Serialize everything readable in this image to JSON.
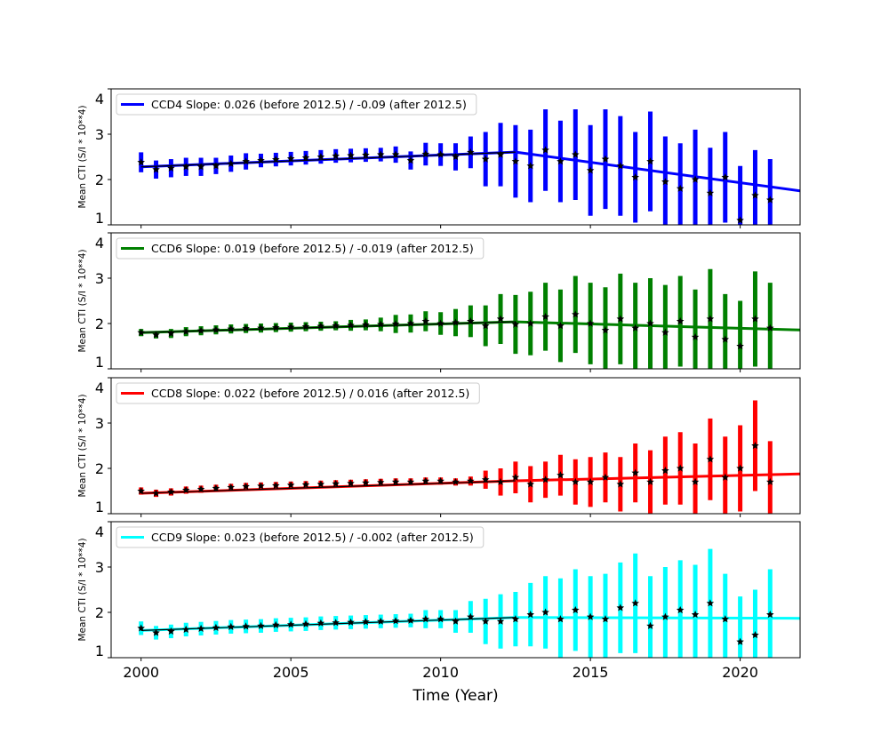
{
  "chart_data": {
    "type": "scatter",
    "xlabel": "Time (Year)",
    "ylabel": "Mean CTI (S/I * 10**4)",
    "xlim": [
      1999,
      2022
    ],
    "ylim": [
      1,
      4
    ],
    "xticks": [
      2000,
      2005,
      2010,
      2015,
      2020
    ],
    "yticks": [
      1,
      2,
      3,
      4
    ],
    "legend_placement": "top-left",
    "grid": false,
    "x": [
      2000,
      2000.5,
      2001,
      2001.5,
      2002,
      2002.5,
      2003,
      2003.5,
      2004,
      2004.5,
      2005,
      2005.5,
      2006,
      2006.5,
      2007,
      2007.5,
      2008,
      2008.5,
      2009,
      2009.5,
      2010,
      2010.5,
      2011,
      2011.5,
      2012,
      2012.5,
      2013,
      2013.5,
      2014,
      2014.5,
      2015,
      2015.5,
      2016,
      2016.5,
      2017,
      2017.5,
      2018,
      2018.5,
      2019,
      2019.5,
      2020,
      2020.5,
      2021
    ],
    "panels": [
      {
        "legend": "CCD4 Slope: 0.026 (before 2012.5) / -0.09 (after 2012.5)",
        "color": "#0000ff",
        "fit": {
          "start": 2000,
          "break": 2012.5,
          "end": 2022,
          "intercept": 2.28,
          "slope_before": 0.026,
          "slope_after": -0.09
        },
        "y": [
          2.38,
          2.22,
          2.25,
          2.28,
          2.28,
          2.3,
          2.35,
          2.4,
          2.42,
          2.44,
          2.46,
          2.48,
          2.5,
          2.52,
          2.53,
          2.54,
          2.55,
          2.55,
          2.42,
          2.56,
          2.55,
          2.5,
          2.6,
          2.45,
          2.55,
          2.4,
          2.3,
          2.65,
          2.4,
          2.55,
          2.2,
          2.45,
          2.3,
          2.05,
          2.4,
          1.95,
          1.8,
          2.0,
          1.7,
          2.05,
          1.1,
          1.65,
          1.55
        ],
        "err": [
          0.22,
          0.2,
          0.2,
          0.2,
          0.2,
          0.18,
          0.18,
          0.18,
          0.15,
          0.15,
          0.15,
          0.15,
          0.15,
          0.15,
          0.15,
          0.15,
          0.15,
          0.18,
          0.2,
          0.25,
          0.25,
          0.3,
          0.35,
          0.6,
          0.7,
          0.8,
          0.8,
          0.9,
          0.9,
          1.0,
          1.0,
          1.1,
          1.1,
          1.0,
          1.1,
          1.0,
          1.0,
          1.1,
          1.0,
          1.0,
          1.2,
          1.0,
          0.9
        ]
      },
      {
        "legend": "CCD6 Slope: 0.019 (before 2012.5) / -0.019 (after 2012.5)",
        "color": "#008000",
        "fit": {
          "start": 2000,
          "break": 2012.5,
          "end": 2022,
          "intercept": 1.8,
          "slope_before": 0.019,
          "slope_after": -0.019
        },
        "y": [
          1.8,
          1.75,
          1.78,
          1.82,
          1.84,
          1.86,
          1.88,
          1.89,
          1.9,
          1.91,
          1.92,
          1.93,
          1.94,
          1.95,
          1.96,
          1.97,
          1.98,
          1.99,
          2.0,
          2.05,
          2.0,
          2.02,
          2.05,
          1.95,
          2.1,
          1.98,
          2.0,
          2.15,
          1.95,
          2.2,
          2.0,
          1.85,
          2.1,
          1.9,
          2.0,
          1.8,
          2.05,
          1.7,
          2.1,
          1.65,
          1.5,
          2.1,
          1.9
        ],
        "err": [
          0.08,
          0.08,
          0.1,
          0.1,
          0.1,
          0.1,
          0.1,
          0.1,
          0.1,
          0.1,
          0.1,
          0.1,
          0.1,
          0.1,
          0.12,
          0.12,
          0.15,
          0.2,
          0.2,
          0.22,
          0.25,
          0.3,
          0.35,
          0.45,
          0.55,
          0.65,
          0.7,
          0.75,
          0.8,
          0.85,
          0.9,
          0.95,
          1.0,
          1.0,
          1.0,
          1.05,
          1.0,
          1.05,
          1.1,
          1.0,
          1.0,
          1.05,
          1.0
        ]
      },
      {
        "legend": "CCD8 Slope: 0.022 (before 2012.5) / 0.016 (after 2012.5)",
        "color": "#ff0000",
        "fit": {
          "start": 2000,
          "break": 2012.5,
          "end": 2022,
          "intercept": 1.45,
          "slope_before": 0.022,
          "slope_after": 0.016
        },
        "y": [
          1.5,
          1.45,
          1.48,
          1.52,
          1.54,
          1.56,
          1.58,
          1.6,
          1.61,
          1.62,
          1.63,
          1.64,
          1.65,
          1.66,
          1.67,
          1.68,
          1.69,
          1.7,
          1.7,
          1.72,
          1.72,
          1.7,
          1.72,
          1.75,
          1.7,
          1.8,
          1.65,
          1.75,
          1.85,
          1.7,
          1.7,
          1.8,
          1.65,
          1.9,
          1.7,
          1.95,
          2.0,
          1.7,
          2.2,
          1.8,
          2.0,
          2.5,
          1.7
        ],
        "err": [
          0.08,
          0.08,
          0.08,
          0.08,
          0.08,
          0.08,
          0.08,
          0.08,
          0.08,
          0.08,
          0.08,
          0.08,
          0.08,
          0.08,
          0.08,
          0.08,
          0.08,
          0.08,
          0.08,
          0.08,
          0.08,
          0.08,
          0.1,
          0.2,
          0.3,
          0.35,
          0.4,
          0.4,
          0.45,
          0.5,
          0.55,
          0.55,
          0.6,
          0.65,
          0.7,
          0.75,
          0.8,
          0.85,
          0.9,
          0.9,
          0.95,
          1.0,
          0.9
        ]
      },
      {
        "legend": "CCD9 Slope: 0.023 (before 2012.5) / -0.002 (after 2012.5)",
        "color": "#00ffff",
        "fit": {
          "start": 2000,
          "break": 2012.5,
          "end": 2022,
          "intercept": 1.6,
          "slope_before": 0.023,
          "slope_after": -0.002
        },
        "y": [
          1.65,
          1.55,
          1.58,
          1.62,
          1.64,
          1.66,
          1.68,
          1.69,
          1.7,
          1.72,
          1.73,
          1.74,
          1.76,
          1.77,
          1.78,
          1.79,
          1.8,
          1.81,
          1.82,
          1.85,
          1.85,
          1.8,
          1.9,
          1.8,
          1.8,
          1.85,
          1.95,
          2.0,
          1.85,
          2.05,
          1.9,
          1.85,
          2.1,
          2.2,
          1.7,
          1.9,
          2.05,
          1.95,
          2.2,
          1.85,
          1.35,
          1.5,
          1.95
        ],
        "err": [
          0.15,
          0.15,
          0.15,
          0.15,
          0.15,
          0.15,
          0.15,
          0.15,
          0.15,
          0.15,
          0.15,
          0.15,
          0.15,
          0.15,
          0.15,
          0.15,
          0.15,
          0.15,
          0.15,
          0.2,
          0.2,
          0.25,
          0.35,
          0.5,
          0.6,
          0.6,
          0.7,
          0.8,
          0.9,
          0.9,
          0.9,
          1.0,
          1.0,
          1.1,
          1.1,
          1.1,
          1.1,
          1.1,
          1.2,
          1.0,
          1.0,
          1.0,
          1.0
        ]
      }
    ]
  }
}
